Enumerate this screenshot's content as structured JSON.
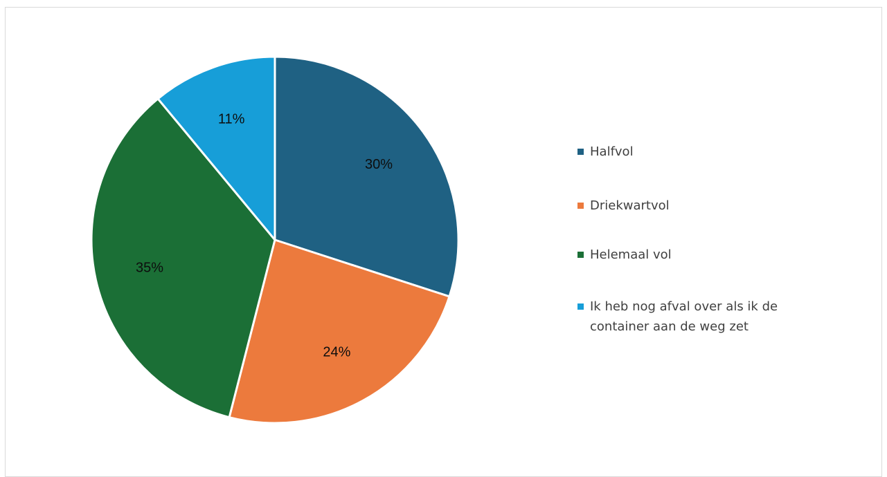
{
  "chart_data": {
    "type": "pie",
    "title": "",
    "slices": [
      {
        "name": "Halfvol",
        "value": 30,
        "label": "30%",
        "color": "#1f6183"
      },
      {
        "name": "Driekwartvol",
        "value": 24,
        "label": "24%",
        "color": "#ec7a3d"
      },
      {
        "name": "Helemaal vol",
        "value": 35,
        "label": "35%",
        "color": "#1b6f36"
      },
      {
        "name": "Ik heb nog afval over als ik de container aan de weg zet",
        "value": 11,
        "label": "11%",
        "color": "#179ed8"
      }
    ],
    "legend_position": "right",
    "start_angle": "12 o'clock",
    "direction": "clockwise"
  }
}
